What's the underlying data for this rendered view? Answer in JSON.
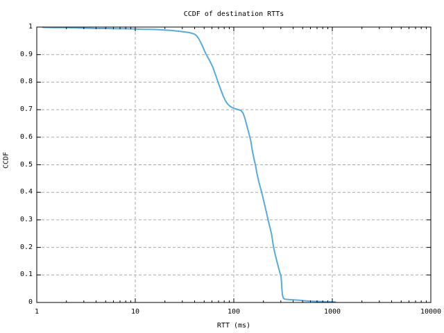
{
  "title": "CCDF of destination RTTs",
  "colors": {
    "line": "#56aadd",
    "grid": "#a9a9a9",
    "axis": "#000000",
    "text": "#000000",
    "background": "#ffffff"
  },
  "axes": {
    "x": {
      "label": "RTT (ms)",
      "scale": "log",
      "ticks": [
        {
          "v": 1,
          "label": "1"
        },
        {
          "v": 10,
          "label": "10"
        },
        {
          "v": 100,
          "label": "100"
        },
        {
          "v": 1000,
          "label": "1000"
        },
        {
          "v": 10000,
          "label": "10000"
        }
      ]
    },
    "y": {
      "label": "CCDF",
      "scale": "linear",
      "ticks": [
        {
          "v": 0,
          "label": "0"
        },
        {
          "v": 0.1,
          "label": "0.1"
        },
        {
          "v": 0.2,
          "label": "0.2"
        },
        {
          "v": 0.3,
          "label": "0.3"
        },
        {
          "v": 0.4,
          "label": "0.4"
        },
        {
          "v": 0.5,
          "label": "0.5"
        },
        {
          "v": 0.6,
          "label": "0.6"
        },
        {
          "v": 0.7,
          "label": "0.7"
        },
        {
          "v": 0.8,
          "label": "0.8"
        },
        {
          "v": 0.9,
          "label": "0.9"
        },
        {
          "v": 1,
          "label": "1"
        }
      ]
    }
  },
  "chart_data": {
    "type": "line",
    "title": "CCDF of destination RTTs",
    "xlabel": "RTT (ms)",
    "ylabel": "CCDF",
    "xscale": "log",
    "xlim": [
      1,
      10000
    ],
    "ylim": [
      0,
      1
    ],
    "grid": true,
    "legend": false,
    "series": [
      {
        "name": "CCDF of destination RTTs",
        "color": "#56aadd",
        "points": [
          [
            1.15,
            0.999
          ],
          [
            1.5,
            0.998
          ],
          [
            2,
            0.998
          ],
          [
            2.6,
            0.997
          ],
          [
            3.2,
            0.996
          ],
          [
            4,
            0.995
          ],
          [
            5,
            0.995
          ],
          [
            6.5,
            0.994
          ],
          [
            8,
            0.994
          ],
          [
            10,
            0.993
          ],
          [
            12,
            0.992
          ],
          [
            14,
            0.992
          ],
          [
            17,
            0.991
          ],
          [
            20,
            0.989
          ],
          [
            23,
            0.988
          ],
          [
            26,
            0.986
          ],
          [
            29,
            0.984
          ],
          [
            32,
            0.982
          ],
          [
            35,
            0.98
          ],
          [
            38,
            0.977
          ],
          [
            40,
            0.974
          ],
          [
            42,
            0.968
          ],
          [
            44,
            0.958
          ],
          [
            46,
            0.945
          ],
          [
            48,
            0.932
          ],
          [
            50,
            0.916
          ],
          [
            52,
            0.903
          ],
          [
            55,
            0.888
          ],
          [
            58,
            0.872
          ],
          [
            61,
            0.856
          ],
          [
            64,
            0.835
          ],
          [
            67,
            0.815
          ],
          [
            70,
            0.795
          ],
          [
            74,
            0.772
          ],
          [
            78,
            0.75
          ],
          [
            82,
            0.733
          ],
          [
            86,
            0.722
          ],
          [
            91,
            0.713
          ],
          [
            97,
            0.707
          ],
          [
            104,
            0.703
          ],
          [
            112,
            0.7
          ],
          [
            118,
            0.697
          ],
          [
            124,
            0.688
          ],
          [
            129,
            0.671
          ],
          [
            134,
            0.65
          ],
          [
            139,
            0.628
          ],
          [
            144,
            0.607
          ],
          [
            149,
            0.585
          ],
          [
            154,
            0.553
          ],
          [
            160,
            0.523
          ],
          [
            166,
            0.498
          ],
          [
            172,
            0.468
          ],
          [
            178,
            0.443
          ],
          [
            185,
            0.421
          ],
          [
            192,
            0.4
          ],
          [
            200,
            0.373
          ],
          [
            208,
            0.347
          ],
          [
            216,
            0.322
          ],
          [
            224,
            0.297
          ],
          [
            233,
            0.272
          ],
          [
            242,
            0.247
          ],
          [
            252,
            0.205
          ],
          [
            262,
            0.177
          ],
          [
            273,
            0.152
          ],
          [
            284,
            0.127
          ],
          [
            295,
            0.106
          ],
          [
            301,
            0.097
          ],
          [
            305,
            0.073
          ],
          [
            308,
            0.048
          ],
          [
            311,
            0.03
          ],
          [
            315,
            0.02
          ],
          [
            320,
            0.015
          ],
          [
            330,
            0.012
          ],
          [
            350,
            0.011
          ],
          [
            380,
            0.01
          ],
          [
            420,
            0.009
          ],
          [
            460,
            0.008
          ],
          [
            510,
            0.0065
          ],
          [
            580,
            0.005
          ],
          [
            680,
            0.004
          ],
          [
            800,
            0.003
          ],
          [
            950,
            0.0025
          ],
          [
            1070,
            0.002
          ]
        ]
      }
    ]
  }
}
